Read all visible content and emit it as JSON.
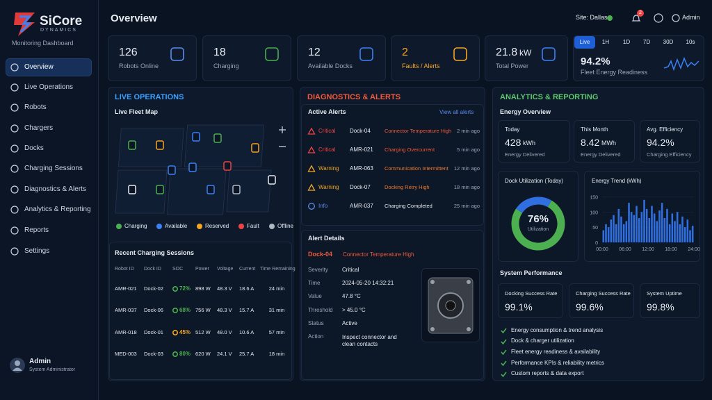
{
  "brand": {
    "name": "SiCore",
    "sub": "DYNAMICS",
    "tagline": "Monitoring Dashboard"
  },
  "nav": [
    "Overview",
    "Live Operations",
    "Robots",
    "Chargers",
    "Docks",
    "Charging Sessions",
    "Diagnostics & Alerts",
    "Analytics & Reporting",
    "Reports",
    "Settings"
  ],
  "user": {
    "name": "Admin",
    "role": "System Administrator"
  },
  "header": {
    "title": "Overview",
    "site": "Site: Dallas",
    "notifications": "2",
    "user": "Admin"
  },
  "kpis": [
    {
      "value": "126",
      "label": "Robots Online",
      "color": "#5b8def"
    },
    {
      "value": "18",
      "label": "Charging",
      "color": "#4caf50"
    },
    {
      "value": "12",
      "label": "Available Docks",
      "color": "#3b82f6"
    },
    {
      "value": "2",
      "label": "Faults / Alerts",
      "color": "#f5a623"
    },
    {
      "value": "21.8",
      "unit": "kW",
      "label": "Total Power",
      "color": "#3b82f6"
    }
  ],
  "ranges": [
    "Live",
    "1H",
    "1D",
    "7D",
    "30D",
    "10s"
  ],
  "readiness": {
    "value": "94.2%",
    "label": "Fleet Energy Readiness"
  },
  "live": {
    "title": "LIVE OPERATIONS",
    "map_title": "Live Fleet Map",
    "legend": [
      {
        "name": "Charging",
        "color": "#4caf50"
      },
      {
        "name": "Available",
        "color": "#3b82f6"
      },
      {
        "name": "Reserved",
        "color": "#f5a623"
      },
      {
        "name": "Fault",
        "color": "#ef4444"
      },
      {
        "name": "Offline",
        "color": "#b0b7c3"
      }
    ]
  },
  "sessions": {
    "title": "Recent Charging Sessions",
    "columns": [
      "Robot ID",
      "Dock ID",
      "SOC",
      "Power",
      "Voltage",
      "Current",
      "Time Remaining"
    ],
    "rows": [
      [
        "AMR-021",
        "Dock-02",
        "72%",
        "898 W",
        "48.3 V",
        "18.6 A",
        "24 min"
      ],
      [
        "AMR-037",
        "Dock-06",
        "68%",
        "756 W",
        "48.3 V",
        "15.7 A",
        "31 min"
      ],
      [
        "AMR-018",
        "Dock-01",
        "45%",
        "512 W",
        "48.0 V",
        "10.6 A",
        "57 min"
      ],
      [
        "MED-003",
        "Dock-03",
        "80%",
        "620 W",
        "24.1 V",
        "25.7 A",
        "18 min"
      ]
    ],
    "soc_colors": [
      "#4caf50",
      "#4caf50",
      "#f5a623",
      "#4caf50"
    ]
  },
  "diagnostics": {
    "title": "DIAGNOSTICS & ALERTS",
    "active": "Active Alerts",
    "view_all": "View all alerts",
    "level_colors": {
      "Critical": "#ef4444",
      "Warning": "#f5a623",
      "Info": "#5b8def"
    },
    "message_colors": {
      "Critical": "#ef5a3c",
      "Warning": "#f07a2a",
      "Info": "#e6ebf2"
    },
    "alerts": [
      {
        "level": "Critical",
        "id": "Dock-04",
        "message": "Connector Temperature High",
        "time": "2 min ago"
      },
      {
        "level": "Critical",
        "id": "AMR-021",
        "message": "Charging Overcurrent",
        "time": "5 min ago"
      },
      {
        "level": "Warning",
        "id": "AMR-063",
        "message": "Communication Intermittent",
        "time": "12 min ago"
      },
      {
        "level": "Warning",
        "id": "Dock-07",
        "message": "Docking Retry High",
        "time": "18 min ago"
      },
      {
        "level": "Info",
        "id": "AMR-037",
        "message": "Charging Completed",
        "time": "25 min ago"
      }
    ],
    "details": {
      "title": "Alert Details",
      "id": "Dock-04",
      "message": "Connector Temperature High",
      "fields": [
        [
          "Severity",
          "Critical"
        ],
        [
          "Time",
          "2024-05-20 14:32:21"
        ],
        [
          "Value",
          "47.8 °C"
        ],
        [
          "Threshold",
          "> 45.0 °C"
        ],
        [
          "Status",
          "Active"
        ],
        [
          "Action",
          "Inspect connector and clean contacts"
        ]
      ]
    }
  },
  "analytics": {
    "title": "ANALYTICS & REPORTING",
    "energy_overview": "Energy Overview",
    "energy_cards": [
      {
        "label": "Today",
        "value": "428",
        "unit": "kWh",
        "sub": "Energy Delivered"
      },
      {
        "label": "This Month",
        "value": "8.42",
        "unit": "MWh",
        "sub": "Energy Delivered"
      },
      {
        "label": "Avg. Efficiency",
        "value": "94.2%",
        "sub": "Charging Efficiency"
      }
    ],
    "performance": {
      "title": "System Performance",
      "cards": [
        {
          "label": "Docking Success Rate",
          "value": "99.1%"
        },
        {
          "label": "Charging Success Rate",
          "value": "99.6%"
        },
        {
          "label": "System Uptime",
          "value": "99.8%"
        }
      ],
      "features": [
        "Energy consumption & trend analysis",
        "Dock & charger utilization",
        "Fleet energy readiness & availability",
        "Performance KPIs & reliability metrics",
        "Custom reports & data export"
      ]
    }
  },
  "chart_data": [
    {
      "type": "donut",
      "title": "Dock Utilization (Today)",
      "values": [
        76,
        24
      ],
      "colors": [
        "#4caf50",
        "#2f6fe0"
      ],
      "center_value": "76%",
      "center_label": "Utilization"
    },
    {
      "type": "bar",
      "title": "Energy Trend (kWh)",
      "color": "#2f6fe0",
      "values": [
        40,
        60,
        50,
        75,
        90,
        60,
        110,
        85,
        60,
        70,
        130,
        100,
        90,
        120,
        80,
        100,
        140,
        110,
        80,
        120,
        95,
        70,
        105,
        130,
        80,
        110,
        60,
        95,
        70,
        100,
        60,
        85,
        50,
        75,
        40,
        55
      ],
      "xticks": [
        "00:00",
        "06:00",
        "12:00",
        "18:00",
        "24:00"
      ],
      "ylim": [
        0,
        160
      ],
      "yticks": [
        0,
        50,
        100,
        150
      ]
    }
  ]
}
